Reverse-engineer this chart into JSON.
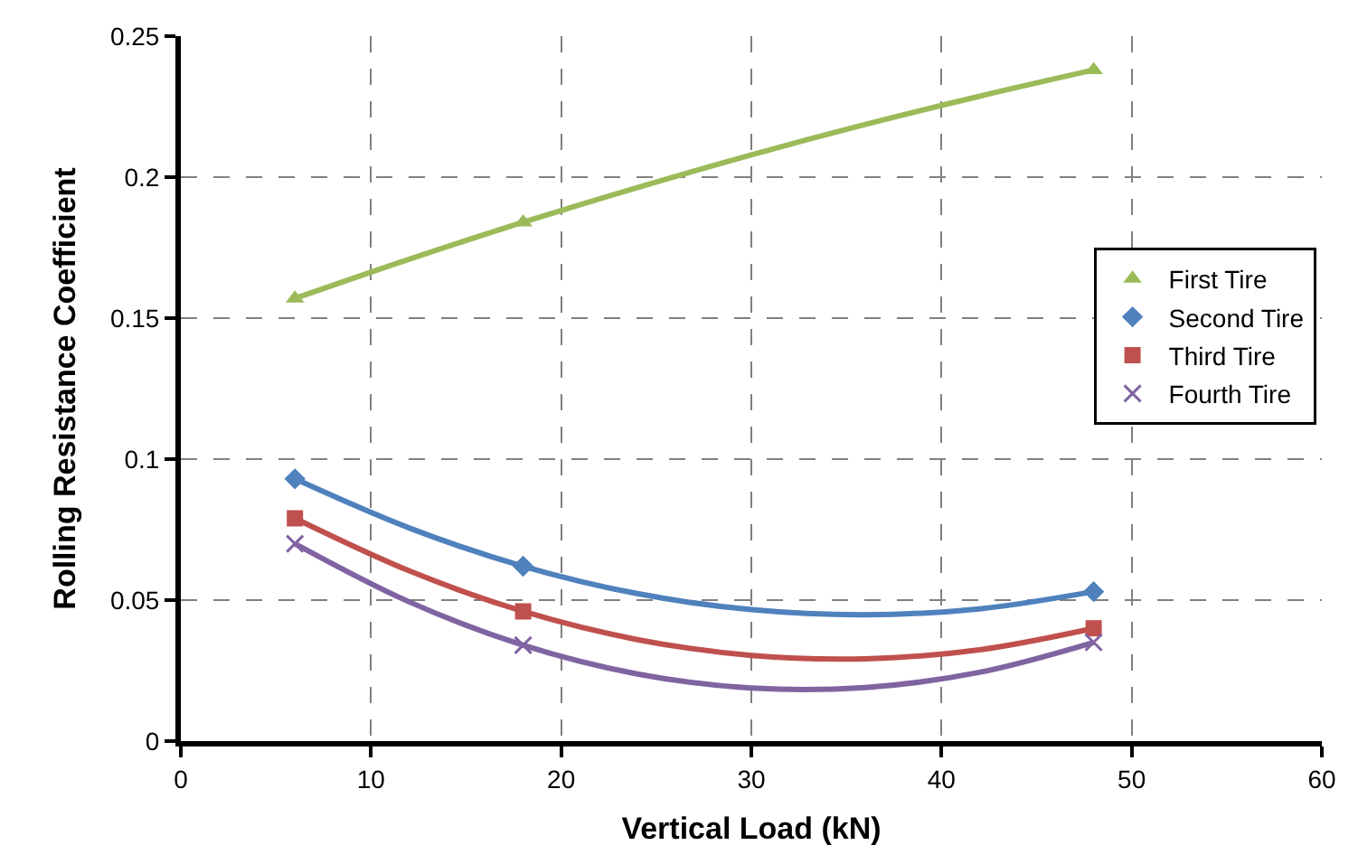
{
  "chart_data": {
    "type": "scatter",
    "xlabel": "Vertical Load (kN)",
    "ylabel": "Rolling Resistance Coefficient",
    "x": [
      6,
      18,
      48
    ],
    "xlim": [
      0,
      60
    ],
    "xticks": [
      0,
      10,
      20,
      30,
      40,
      50,
      60
    ],
    "ylim": [
      0,
      0.25
    ],
    "yticks": [
      0,
      0.05,
      0.1,
      0.15,
      0.2,
      0.25
    ],
    "grid": true,
    "legend": "right",
    "series": [
      {
        "name": "First Tire",
        "color": "#9bbb59",
        "marker": "triangle",
        "values": [
          0.157,
          0.184,
          0.238
        ]
      },
      {
        "name": "Second Tire",
        "color": "#4f81bd",
        "marker": "diamond",
        "values": [
          0.093,
          0.062,
          0.053
        ]
      },
      {
        "name": "Third Tire",
        "color": "#c0504d",
        "marker": "square",
        "values": [
          0.079,
          0.046,
          0.04
        ]
      },
      {
        "name": "Fourth Tire",
        "color": "#8064a2",
        "marker": "cross",
        "values": [
          0.07,
          0.034,
          0.035
        ]
      },
      {
        "type": "line",
        "color": "#9bbb59",
        "marker": "none",
        "x": [
          6,
          12,
          18,
          24,
          30,
          36,
          42,
          48
        ],
        "values": [
          0.157,
          0.1709,
          0.184,
          0.1963,
          0.2079,
          0.2187,
          0.2287,
          0.238
        ]
      },
      {
        "type": "line",
        "color": "#4f81bd",
        "marker": "none",
        "x": [
          6,
          12,
          18,
          24,
          30,
          36,
          42,
          48
        ],
        "values": [
          0.093,
          0.0756,
          0.062,
          0.0523,
          0.0466,
          0.0448,
          0.0469,
          0.053
        ]
      },
      {
        "type": "line",
        "color": "#c0504d",
        "marker": "none",
        "x": [
          6,
          12,
          18,
          24,
          30,
          36,
          42,
          48
        ],
        "values": [
          0.079,
          0.0604,
          0.046,
          0.036,
          0.0304,
          0.0292,
          0.0324,
          0.04
        ]
      },
      {
        "type": "line",
        "color": "#8064a2",
        "marker": "none",
        "x": [
          6,
          12,
          18,
          24,
          30,
          36,
          42,
          48
        ],
        "values": [
          0.07,
          0.0494,
          0.034,
          0.0238,
          0.0188,
          0.019,
          0.0244,
          0.035
        ]
      }
    ]
  }
}
